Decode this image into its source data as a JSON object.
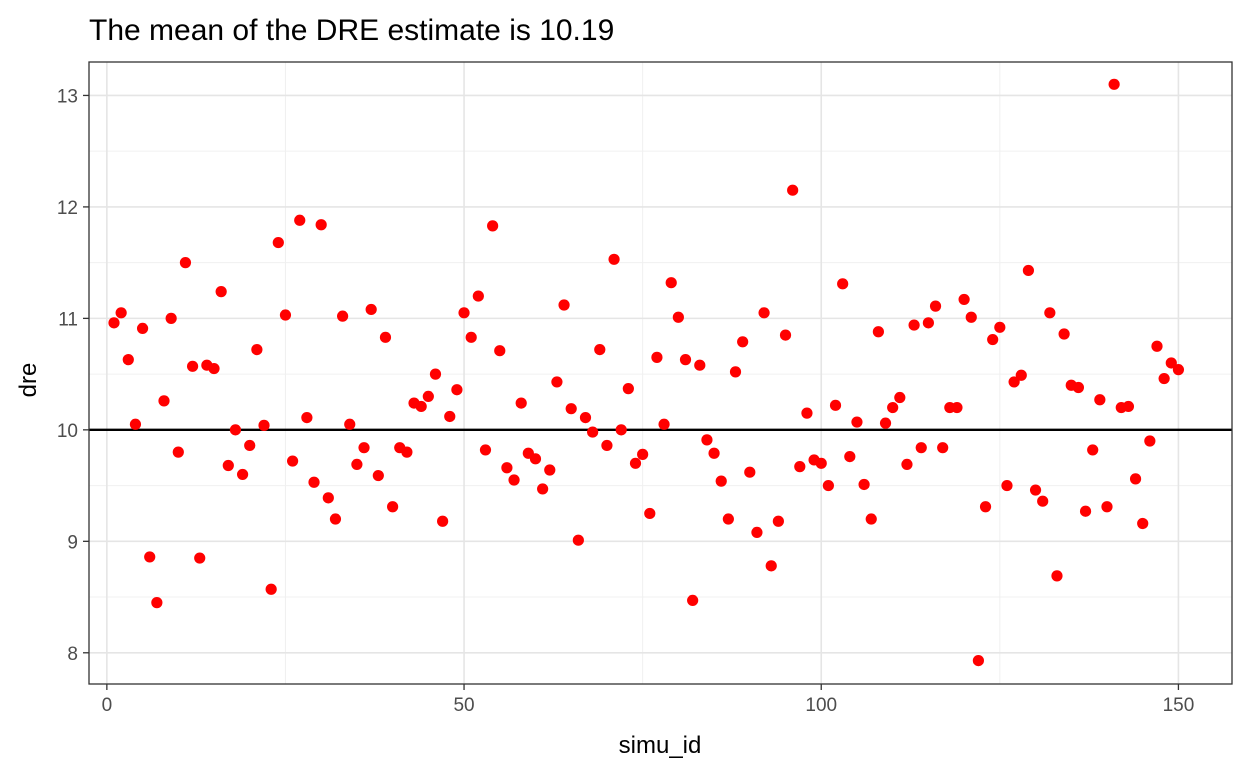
{
  "chart_data": {
    "type": "scatter",
    "title": "The mean of the DRE estimate is  10.19",
    "xlabel": "simu_id",
    "ylabel": "dre",
    "xlim": [
      -2.5,
      157.5
    ],
    "ylim": [
      7.72,
      13.3
    ],
    "x_ticks": [
      0,
      50,
      100,
      150
    ],
    "y_ticks": [
      8,
      9,
      10,
      11,
      12,
      13
    ],
    "x_tick_labels": [
      "0",
      "50",
      "100",
      "150"
    ],
    "y_tick_labels": [
      "8",
      "9",
      "10",
      "11",
      "12",
      "13"
    ],
    "hline": 10,
    "point_color": "#ff0000",
    "line_color": "#000000",
    "grid": true,
    "series": [
      {
        "x": [
          1,
          2,
          3,
          4,
          5,
          6,
          7,
          8,
          9,
          10,
          11,
          12,
          13,
          14,
          15,
          16,
          17,
          18,
          19,
          20,
          21,
          22,
          23,
          24,
          25,
          26,
          27,
          28,
          29,
          30,
          31,
          32,
          33,
          34,
          35,
          36,
          37,
          38,
          39,
          40,
          41,
          42,
          43,
          44,
          45,
          46,
          47,
          48,
          49,
          50,
          51,
          52,
          53,
          54,
          55,
          56,
          57,
          58,
          59,
          60,
          61,
          62,
          63,
          64,
          65,
          66,
          67,
          68,
          69,
          70,
          71,
          72,
          73,
          74,
          75,
          76,
          77,
          78,
          79,
          80,
          81,
          82,
          83,
          84,
          85,
          86,
          87,
          88,
          89,
          90,
          91,
          92,
          93,
          94,
          95,
          96,
          97,
          98,
          99,
          100,
          101,
          102,
          103,
          104,
          105,
          106,
          107,
          108,
          109,
          110,
          111,
          112,
          113,
          114,
          115,
          116,
          117,
          118,
          119,
          120,
          121,
          122,
          123,
          124,
          125,
          126,
          127,
          128,
          129,
          130,
          131,
          132,
          133,
          134,
          135,
          136,
          137,
          138,
          139,
          140,
          141,
          142,
          143,
          144,
          145,
          146,
          147,
          148,
          149,
          150
        ],
        "y": [
          10.96,
          11.05,
          10.63,
          10.05,
          10.91,
          8.86,
          8.45,
          10.26,
          11.0,
          9.8,
          11.5,
          10.57,
          8.85,
          10.58,
          10.55,
          11.24,
          9.68,
          10.0,
          9.6,
          9.86,
          10.72,
          10.04,
          8.57,
          11.68,
          11.03,
          9.72,
          11.88,
          10.11,
          9.53,
          11.84,
          9.39,
          9.2,
          11.02,
          10.05,
          9.69,
          9.84,
          11.08,
          9.59,
          10.83,
          9.31,
          9.84,
          9.8,
          10.24,
          10.21,
          10.3,
          10.5,
          9.18,
          10.12,
          10.36,
          11.05,
          10.83,
          11.2,
          9.82,
          11.83,
          10.71,
          9.66,
          9.55,
          10.24,
          9.79,
          9.74,
          9.47,
          9.64,
          10.43,
          11.12,
          10.19,
          9.01,
          10.11,
          9.98,
          10.72,
          9.86,
          11.53,
          10.0,
          10.37,
          9.7,
          9.78,
          9.25,
          10.65,
          10.05,
          11.32,
          11.01,
          10.63,
          8.47,
          10.58,
          9.91,
          9.79,
          9.54,
          9.2,
          10.52,
          10.79,
          9.62,
          9.08,
          11.05,
          8.78,
          9.18,
          10.85,
          12.15,
          9.67,
          10.15,
          9.73,
          9.7,
          9.5,
          10.22,
          11.31,
          9.76,
          10.07,
          9.51,
          9.2,
          10.88,
          10.06,
          10.2,
          10.29,
          9.69,
          10.94,
          9.84,
          10.96,
          11.11,
          9.84,
          10.2,
          10.2,
          11.17,
          11.01,
          7.93,
          9.31,
          10.81,
          10.92,
          9.5,
          10.43,
          10.49,
          11.43,
          9.46,
          9.36,
          11.05,
          8.69,
          10.86,
          10.4,
          10.38,
          9.27,
          9.82,
          10.27,
          9.31,
          13.1,
          10.2,
          10.21,
          9.56,
          9.16,
          9.9,
          10.75,
          10.46,
          10.6,
          10.54
        ]
      }
    ]
  }
}
